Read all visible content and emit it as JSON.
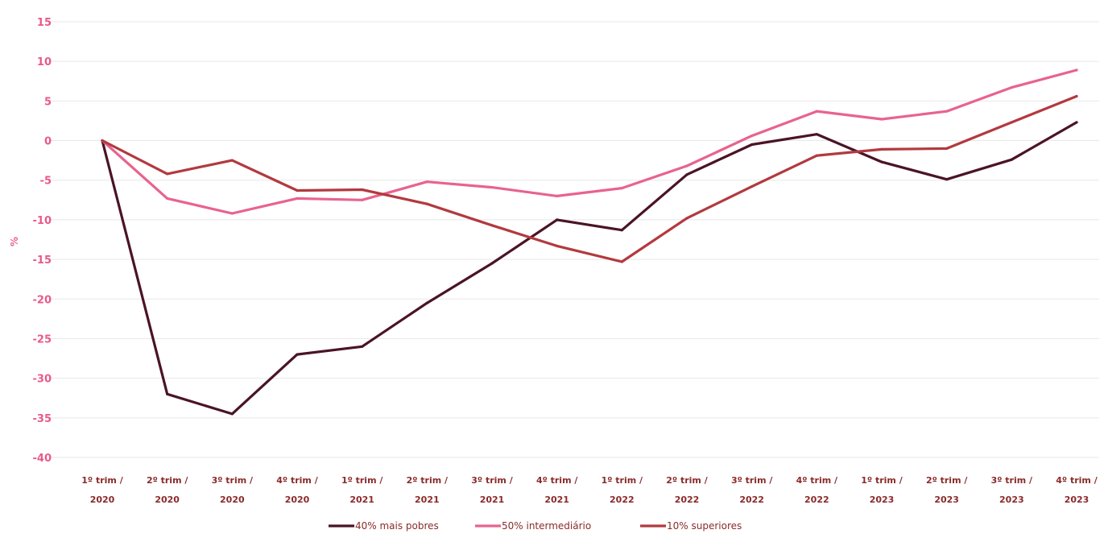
{
  "chart_data": {
    "type": "line",
    "title": "",
    "ylabel": "%",
    "xlabel": "",
    "ylim": [
      -40,
      15
    ],
    "yticks": [
      15,
      10,
      5,
      0,
      -5,
      -10,
      -15,
      -20,
      -25,
      -30,
      -35,
      -40
    ],
    "grid": true,
    "legend_position": "bottom",
    "categories": [
      [
        "1º trim /",
        "2020"
      ],
      [
        "2º trim /",
        "2020"
      ],
      [
        "3º trim /",
        "2020"
      ],
      [
        "4º trim /",
        "2020"
      ],
      [
        "1º trim /",
        "2021"
      ],
      [
        "2º trim /",
        "2021"
      ],
      [
        "3º trim /",
        "2021"
      ],
      [
        "4º trim /",
        "2021"
      ],
      [
        "1º trim /",
        "2022"
      ],
      [
        "2º trim /",
        "2022"
      ],
      [
        "3º trim /",
        "2022"
      ],
      [
        "4º trim /",
        "2022"
      ],
      [
        "1º trim /",
        "2023"
      ],
      [
        "2º trim /",
        "2023"
      ],
      [
        "3º trim /",
        "2023"
      ],
      [
        "4º trim /",
        "2023"
      ]
    ],
    "series": [
      {
        "name": "40% mais pobres",
        "color": "#4a1424",
        "values": [
          0,
          -32,
          -34.5,
          -27,
          -26,
          -20.5,
          -15.5,
          -10,
          -11.3,
          -4.3,
          -0.5,
          0.8,
          -2.7,
          -4.9,
          -2.4,
          2.3
        ]
      },
      {
        "name": "50% intermediário",
        "color": "#e8638e",
        "values": [
          0,
          -7.3,
          -9.2,
          -7.3,
          -7.5,
          -5.2,
          -5.9,
          -7,
          -6,
          -3.2,
          0.6,
          3.7,
          2.7,
          3.7,
          6.7,
          8.9
        ]
      },
      {
        "name": "10% superiores",
        "color": "#b23a3f",
        "values": [
          0,
          -4.2,
          -2.5,
          -6.3,
          -6.2,
          -8,
          -10.7,
          -13.3,
          -15.3,
          -9.8,
          -5.8,
          -1.9,
          -1.1,
          -1,
          2.3,
          5.6
        ]
      }
    ]
  },
  "colors": {
    "ytick": "#e85a8a",
    "xtick": "#8b2a2a",
    "grid": "#e8e8e8",
    "ylabel": "#e8638e"
  }
}
